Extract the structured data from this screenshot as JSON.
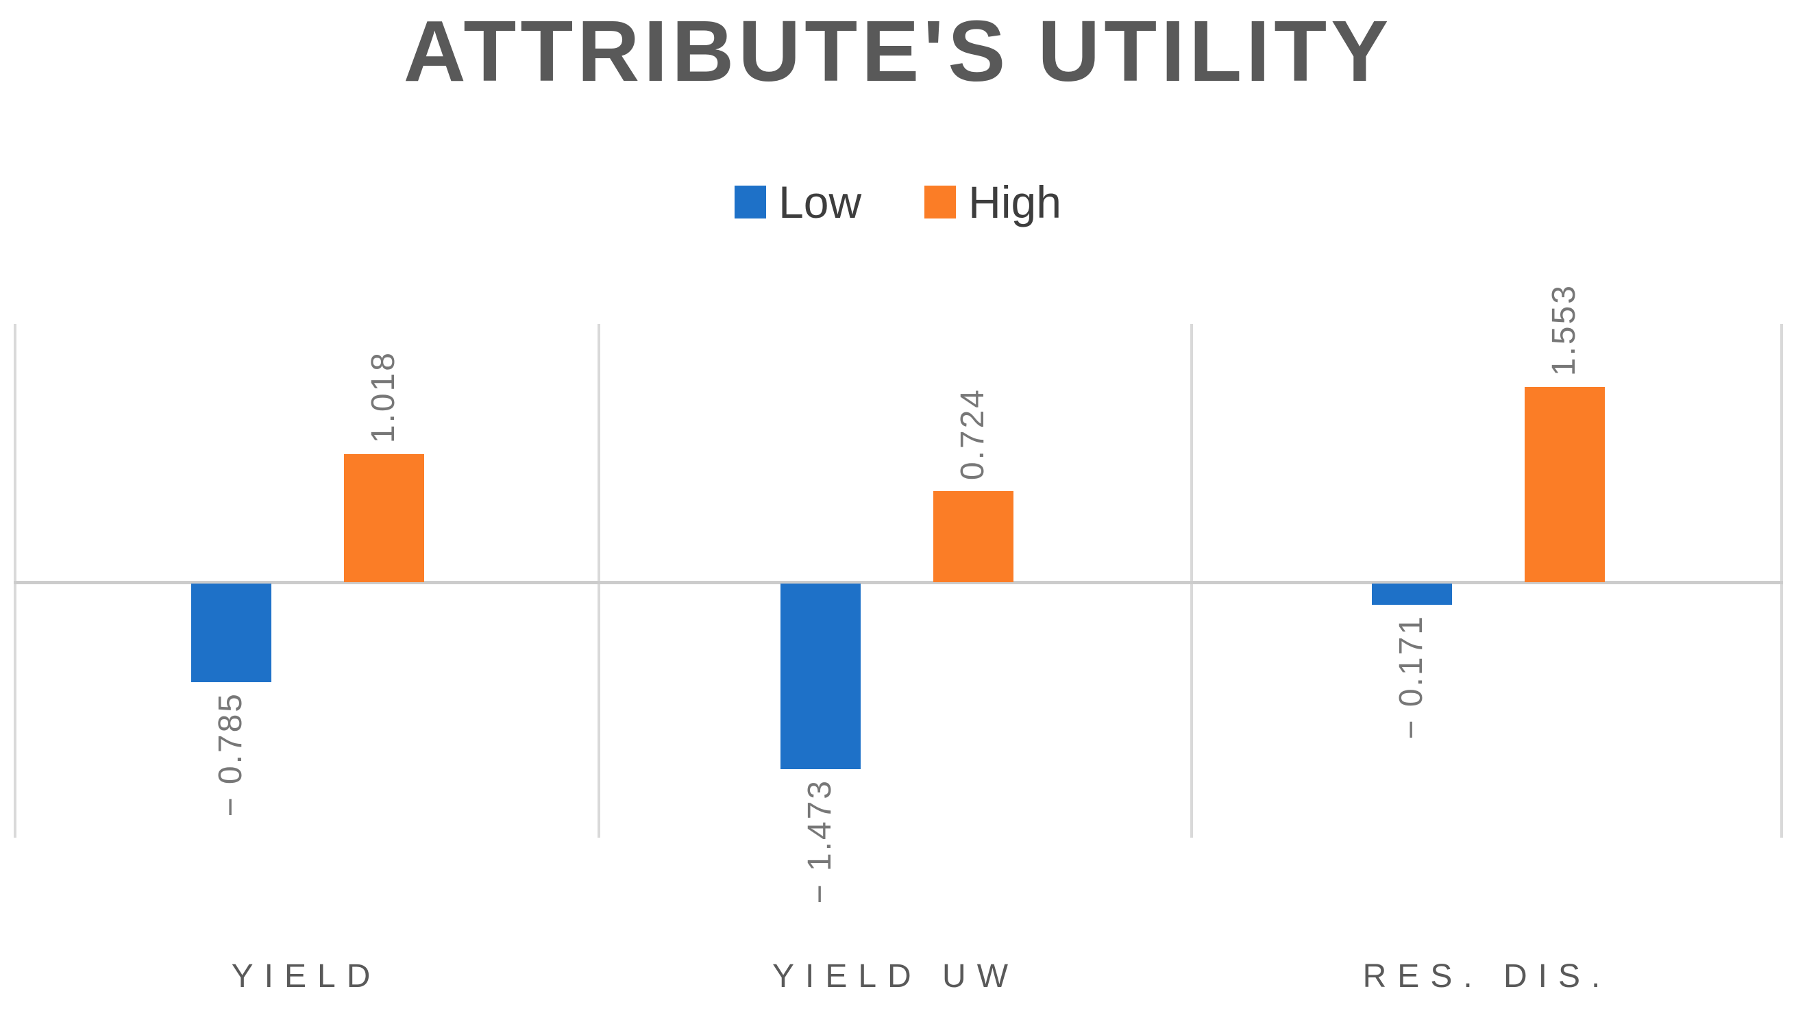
{
  "chart_data": {
    "type": "bar",
    "title": "ATTRIBUTE'S UTILITY",
    "categories": [
      "YIELD",
      "YIELD UW",
      "RES. DIS."
    ],
    "series": [
      {
        "name": "Low",
        "color": "#1E71C8",
        "values": [
          -0.785,
          -1.473,
          -0.171
        ],
        "labels": [
          "− 0.785",
          "− 1.473",
          "− 0.171"
        ]
      },
      {
        "name": "High",
        "color": "#FB7D26",
        "values": [
          1.018,
          0.724,
          1.553
        ],
        "labels": [
          "1.018",
          "0.724",
          "1.553"
        ]
      }
    ],
    "ylim": [
      -2.05,
      2.05
    ],
    "grid": "vertical category separators only, no y-axis tick labels",
    "legend_position": "top-center",
    "data_label_rotation": -90,
    "colors": {
      "title_text": "#595959",
      "data_label_text": "#777777",
      "category_text": "#595959",
      "legend_text": "#3d3d3d",
      "gridline": "#d9d9d9",
      "zero_axis": "#cccccc"
    }
  }
}
